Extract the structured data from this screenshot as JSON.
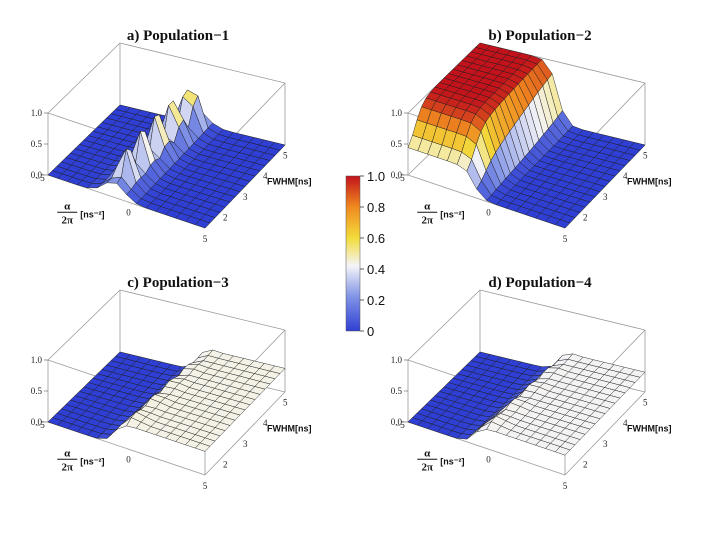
{
  "chart_data": [
    {
      "type": "surface3d",
      "title": "a) Population−1",
      "xlabel_top": "α",
      "xlabel_bottom": "2π",
      "xlabel_units": "[ns⁻²]",
      "ylabel": "FWHM[ns]",
      "zlim": [
        0.0,
        1.0
      ],
      "x_ticks": [
        "−5",
        "0",
        "5"
      ],
      "y_ticks": [
        "2",
        "3",
        "4",
        "5"
      ],
      "z_ticks": [
        "0.0",
        "0.5",
        "1.0"
      ],
      "xlim": [
        -5,
        5
      ],
      "ylim": [
        1,
        5
      ],
      "feature": "series of narrow peaks along the low-alpha edge, max ≈ 0.9"
    },
    {
      "type": "surface3d",
      "title": "b) Population−2",
      "xlabel_top": "α",
      "xlabel_bottom": "2π",
      "xlabel_units": "[ns⁻²]",
      "ylabel": "FWHM[ns]",
      "zlim": [
        0.0,
        1.0
      ],
      "x_ticks": [
        "−5",
        "0",
        "5"
      ],
      "y_ticks": [
        "2",
        "3",
        "4",
        "5"
      ],
      "z_ticks": [
        "0.0",
        "0.5",
        "1.0"
      ],
      "xlim": [
        -5,
        5
      ],
      "ylim": [
        1,
        5
      ],
      "feature": "broad plateau ≈ 1.0 for negative alpha and large FWHM"
    },
    {
      "type": "surface3d",
      "title": "c) Population−3",
      "xlabel_top": "α",
      "xlabel_bottom": "2π",
      "xlabel_units": "[ns⁻²]",
      "ylabel": "FWHM[ns]",
      "zlim": [
        0.0,
        1.0
      ],
      "x_ticks": [
        "−5",
        "0",
        "5"
      ],
      "y_ticks": [
        "2",
        "3",
        "4",
        "5"
      ],
      "z_ticks": [
        "0.0",
        "0.5",
        "1.0"
      ],
      "xlim": [
        -5,
        5
      ],
      "ylim": [
        1,
        5
      ],
      "feature": "low region for negative alpha, ≈ 0.35–0.45 elsewhere"
    },
    {
      "type": "surface3d",
      "title": "d) Population−4",
      "xlabel_top": "α",
      "xlabel_bottom": "2π",
      "xlabel_units": "[ns⁻²]",
      "ylabel": "FWHM[ns]",
      "zlim": [
        0.0,
        1.0
      ],
      "x_ticks": [
        "−5",
        "0",
        "5"
      ],
      "y_ticks": [
        "2",
        "3",
        "4",
        "5"
      ],
      "z_ticks": [
        "0.0",
        "0.5",
        "1.0"
      ],
      "xlim": [
        -5,
        5
      ],
      "ylim": [
        1,
        5
      ],
      "feature": "low region for negative alpha, ≈ 0.3–0.4 elsewhere"
    }
  ],
  "colorbar": {
    "ticks": [
      "1.0",
      "0.8",
      "0.6",
      "0.4",
      "0.2",
      "0"
    ],
    "range": [
      0,
      1
    ],
    "colors": [
      "#3a4bd6",
      "#8fa3ee",
      "#ffffff",
      "#f2d22e",
      "#f28a1e",
      "#c8141a"
    ]
  }
}
